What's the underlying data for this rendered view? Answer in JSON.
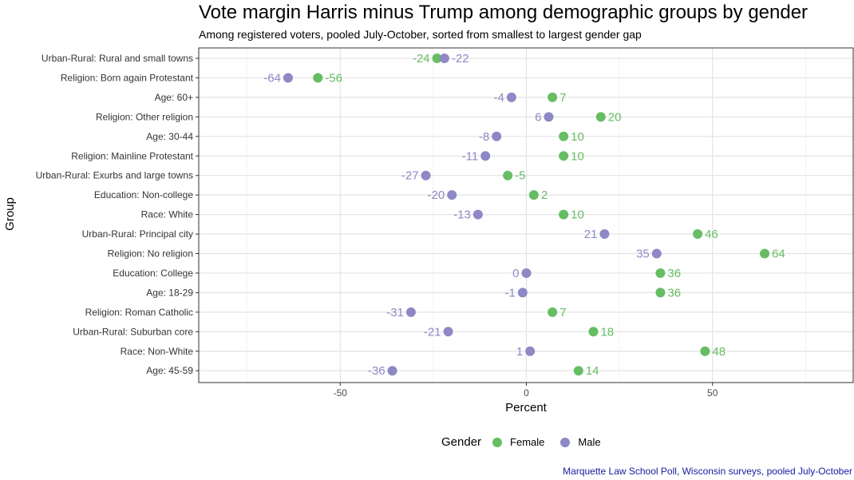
{
  "chart_data": {
    "type": "scatter",
    "title": "Vote margin Harris minus Trump among demographic groups by gender",
    "subtitle": "Among registered voters, pooled July-October, sorted from smallest to largest gender gap",
    "xlabel": "Percent",
    "ylabel": "Group",
    "xlim": [
      -88,
      88
    ],
    "xticks": [
      -50,
      0,
      50
    ],
    "grid": true,
    "legend_position": "bottom",
    "legend_title": "Gender",
    "caption": "Marquette Law School Poll, Wisconsin surveys, pooled July-October",
    "categories": [
      "Urban-Rural: Rural and small towns",
      "Religion: Born again Protestant",
      "Age: 60+",
      "Religion: Other religion",
      "Age: 30-44",
      "Religion: Mainline Protestant",
      "Urban-Rural: Exurbs and large towns",
      "Education: Non-college",
      "Race: White",
      "Urban-Rural: Principal city",
      "Religion: No religion",
      "Education: College",
      "Age: 18-29",
      "Religion: Roman Catholic",
      "Urban-Rural: Suburban core",
      "Race: Non-White",
      "Age: 45-59"
    ],
    "series": [
      {
        "name": "Female",
        "color": "#66bd63",
        "values": [
          -24,
          -56,
          7,
          20,
          10,
          10,
          -5,
          2,
          10,
          46,
          64,
          36,
          36,
          7,
          18,
          48,
          14
        ]
      },
      {
        "name": "Male",
        "color": "#8e88c6",
        "values": [
          -22,
          -64,
          -4,
          6,
          -8,
          -11,
          -27,
          -20,
          -13,
          21,
          35,
          0,
          -1,
          -31,
          -21,
          1,
          -36
        ]
      }
    ]
  }
}
